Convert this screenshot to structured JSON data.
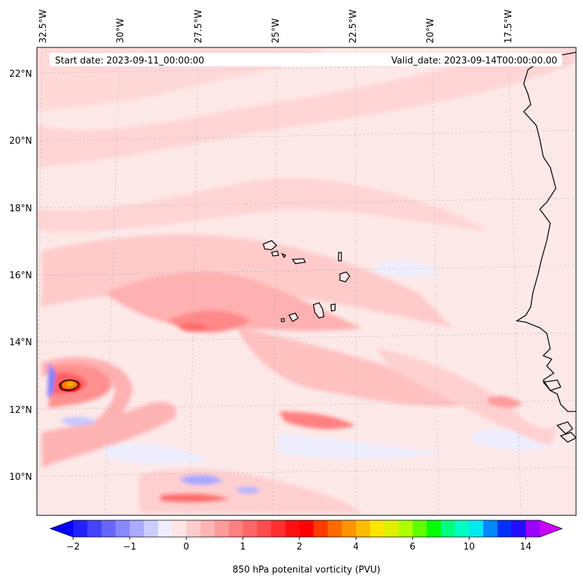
{
  "header": {
    "start_date": "Start date: 2023-09-11_00:00:00",
    "valid_date": "Valid_date: 2023-09-14T00:00:00.00"
  },
  "map": {
    "lon_labels": [
      "32.5°W",
      "30°W",
      "27.5°W",
      "25°W",
      "22.5°W",
      "20°W",
      "17.5°W"
    ],
    "lat_labels": [
      "22°N",
      "20°N",
      "18°N",
      "16°N",
      "14°N",
      "12°N",
      "10°N"
    ],
    "field": "850 hPa potential vorticity",
    "colors": {
      "low_neg": "#0000ff",
      "neg": "#aab0ff",
      "near_zero": "#fde8e8",
      "light_pos": "#ffd0d0",
      "pos": "#ff9a9a",
      "strong_pos": "#ff4d4d",
      "peak": "#ff8000",
      "coast": "#000000"
    }
  },
  "colorbar": {
    "ticks": [
      "−2",
      "−1",
      "0",
      "1",
      "2",
      "4",
      "6",
      "10",
      "14"
    ],
    "label": "850 hPa potenital vorticity (PVU)",
    "colors": [
      "#0000ff",
      "#2222ff",
      "#4444ff",
      "#6666ff",
      "#8888ff",
      "#aaaaff",
      "#ccccff",
      "#eeeeff",
      "#ffe4e4",
      "#ffcccc",
      "#ffb4b4",
      "#ff9a9a",
      "#ff8080",
      "#ff6666",
      "#ff4c4c",
      "#ff3030",
      "#ff1010",
      "#ff0000",
      "#ff3a00",
      "#ff6a00",
      "#ff9400",
      "#ffbb00",
      "#ffe400",
      "#e0f000",
      "#b0ff00",
      "#60ff00",
      "#00ff00",
      "#00ff80",
      "#00ffc0",
      "#00e8f0",
      "#0088ff",
      "#0030ff",
      "#2010ff",
      "#9900ff",
      "#cc00ff"
    ]
  }
}
